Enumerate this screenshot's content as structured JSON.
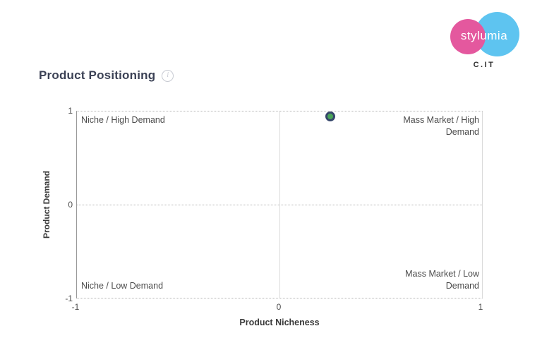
{
  "logo": {
    "brand": "stylumia",
    "sub_brand": "C.IT",
    "pink": "#e4589e",
    "blue": "#5ec4f0"
  },
  "header": {
    "title": "Product Positioning",
    "info_icon": "i"
  },
  "chart_data": {
    "type": "scatter",
    "title": "Product Positioning",
    "xlabel": "Product Nicheness",
    "ylabel": "Product Demand",
    "xlim": [
      -1,
      1
    ],
    "ylim": [
      -1,
      1
    ],
    "x_ticks": [
      "-1",
      "0",
      "1"
    ],
    "y_ticks": [
      "1",
      "0",
      "-1"
    ],
    "grid": "dotted outer top/bottom borders, dotted y=0 line, solid x=0 line",
    "legend": "none",
    "quadrants": {
      "top_left": "Niche / High Demand",
      "top_right": "Mass Market / High Demand",
      "bottom_left": "Niche / Low Demand",
      "bottom_right": "Mass Market / Low Demand"
    },
    "points": [
      {
        "x": 0.25,
        "y": 0.95,
        "fill": "#4aa559",
        "stroke": "#36466b"
      }
    ]
  }
}
